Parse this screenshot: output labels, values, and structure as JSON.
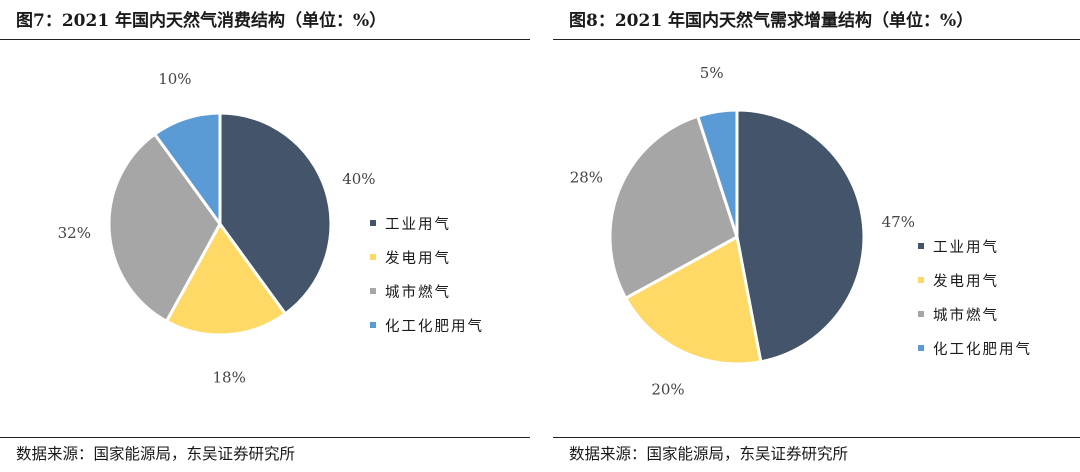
{
  "charts": [
    {
      "title": "图7：2021 年国内天然气消费结构（单位：%）",
      "source": "数据来源：国家能源局，东吴证券研究所"
    },
    {
      "title": "图8：2021 年国内天然气需求增量结构（单位：%）",
      "source": "数据来源：国家能源局，东吴证券研究所"
    }
  ],
  "chart_data": [
    {
      "type": "pie",
      "categories": [
        "工业用气",
        "发电用气",
        "城市燃气",
        "化工化肥用气"
      ],
      "values": [
        40,
        18,
        32,
        10
      ],
      "labels": [
        "40%",
        "18%",
        "32%",
        "10%"
      ],
      "colors": [
        "#44546a",
        "#ffd966",
        "#a6a6a6",
        "#5b9bd5"
      ],
      "legend": "right",
      "title": "图7：2021 年国内天然气消费结构（单位：%）"
    },
    {
      "type": "pie",
      "categories": [
        "工业用气",
        "发电用气",
        "城市燃气",
        "化工化肥用气"
      ],
      "values": [
        47,
        20,
        28,
        5
      ],
      "labels": [
        "47%",
        "20%",
        "28%",
        "5%"
      ],
      "colors": [
        "#44546a",
        "#ffd966",
        "#a6a6a6",
        "#5b9bd5"
      ],
      "legend": "right",
      "title": "图8：2021 年国内天然气需求增量结构（单位：%）"
    }
  ]
}
